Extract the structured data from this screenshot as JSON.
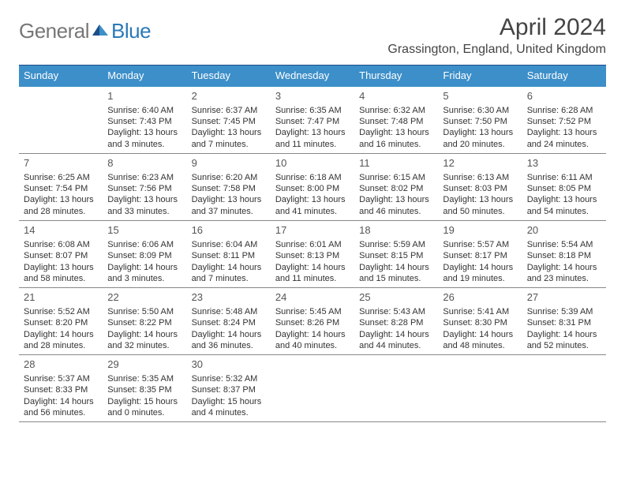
{
  "brand": {
    "part1": "General",
    "part2": "Blue"
  },
  "title": "April 2024",
  "location": "Grassington, England, United Kingdom",
  "colors": {
    "header_bg": "#3d8fc9",
    "border_top": "#1b4f8a",
    "row_border": "#888888",
    "text": "#333333",
    "logo_gray": "#777777",
    "logo_blue": "#2a7ab8"
  },
  "layout": {
    "columns": 7,
    "rows": 5,
    "first_weekday_offset": 1,
    "days_in_month": 30
  },
  "weekdays": [
    "Sunday",
    "Monday",
    "Tuesday",
    "Wednesday",
    "Thursday",
    "Friday",
    "Saturday"
  ],
  "days": [
    {
      "n": 1,
      "sr": "6:40 AM",
      "ss": "7:43 PM",
      "dl": "13 hours and 3 minutes."
    },
    {
      "n": 2,
      "sr": "6:37 AM",
      "ss": "7:45 PM",
      "dl": "13 hours and 7 minutes."
    },
    {
      "n": 3,
      "sr": "6:35 AM",
      "ss": "7:47 PM",
      "dl": "13 hours and 11 minutes."
    },
    {
      "n": 4,
      "sr": "6:32 AM",
      "ss": "7:48 PM",
      "dl": "13 hours and 16 minutes."
    },
    {
      "n": 5,
      "sr": "6:30 AM",
      "ss": "7:50 PM",
      "dl": "13 hours and 20 minutes."
    },
    {
      "n": 6,
      "sr": "6:28 AM",
      "ss": "7:52 PM",
      "dl": "13 hours and 24 minutes."
    },
    {
      "n": 7,
      "sr": "6:25 AM",
      "ss": "7:54 PM",
      "dl": "13 hours and 28 minutes."
    },
    {
      "n": 8,
      "sr": "6:23 AM",
      "ss": "7:56 PM",
      "dl": "13 hours and 33 minutes."
    },
    {
      "n": 9,
      "sr": "6:20 AM",
      "ss": "7:58 PM",
      "dl": "13 hours and 37 minutes."
    },
    {
      "n": 10,
      "sr": "6:18 AM",
      "ss": "8:00 PM",
      "dl": "13 hours and 41 minutes."
    },
    {
      "n": 11,
      "sr": "6:15 AM",
      "ss": "8:02 PM",
      "dl": "13 hours and 46 minutes."
    },
    {
      "n": 12,
      "sr": "6:13 AM",
      "ss": "8:03 PM",
      "dl": "13 hours and 50 minutes."
    },
    {
      "n": 13,
      "sr": "6:11 AM",
      "ss": "8:05 PM",
      "dl": "13 hours and 54 minutes."
    },
    {
      "n": 14,
      "sr": "6:08 AM",
      "ss": "8:07 PM",
      "dl": "13 hours and 58 minutes."
    },
    {
      "n": 15,
      "sr": "6:06 AM",
      "ss": "8:09 PM",
      "dl": "14 hours and 3 minutes."
    },
    {
      "n": 16,
      "sr": "6:04 AM",
      "ss": "8:11 PM",
      "dl": "14 hours and 7 minutes."
    },
    {
      "n": 17,
      "sr": "6:01 AM",
      "ss": "8:13 PM",
      "dl": "14 hours and 11 minutes."
    },
    {
      "n": 18,
      "sr": "5:59 AM",
      "ss": "8:15 PM",
      "dl": "14 hours and 15 minutes."
    },
    {
      "n": 19,
      "sr": "5:57 AM",
      "ss": "8:17 PM",
      "dl": "14 hours and 19 minutes."
    },
    {
      "n": 20,
      "sr": "5:54 AM",
      "ss": "8:18 PM",
      "dl": "14 hours and 23 minutes."
    },
    {
      "n": 21,
      "sr": "5:52 AM",
      "ss": "8:20 PM",
      "dl": "14 hours and 28 minutes."
    },
    {
      "n": 22,
      "sr": "5:50 AM",
      "ss": "8:22 PM",
      "dl": "14 hours and 32 minutes."
    },
    {
      "n": 23,
      "sr": "5:48 AM",
      "ss": "8:24 PM",
      "dl": "14 hours and 36 minutes."
    },
    {
      "n": 24,
      "sr": "5:45 AM",
      "ss": "8:26 PM",
      "dl": "14 hours and 40 minutes."
    },
    {
      "n": 25,
      "sr": "5:43 AM",
      "ss": "8:28 PM",
      "dl": "14 hours and 44 minutes."
    },
    {
      "n": 26,
      "sr": "5:41 AM",
      "ss": "8:30 PM",
      "dl": "14 hours and 48 minutes."
    },
    {
      "n": 27,
      "sr": "5:39 AM",
      "ss": "8:31 PM",
      "dl": "14 hours and 52 minutes."
    },
    {
      "n": 28,
      "sr": "5:37 AM",
      "ss": "8:33 PM",
      "dl": "14 hours and 56 minutes."
    },
    {
      "n": 29,
      "sr": "5:35 AM",
      "ss": "8:35 PM",
      "dl": "15 hours and 0 minutes."
    },
    {
      "n": 30,
      "sr": "5:32 AM",
      "ss": "8:37 PM",
      "dl": "15 hours and 4 minutes."
    }
  ],
  "labels": {
    "sunrise": "Sunrise:",
    "sunset": "Sunset:",
    "daylight": "Daylight:"
  }
}
